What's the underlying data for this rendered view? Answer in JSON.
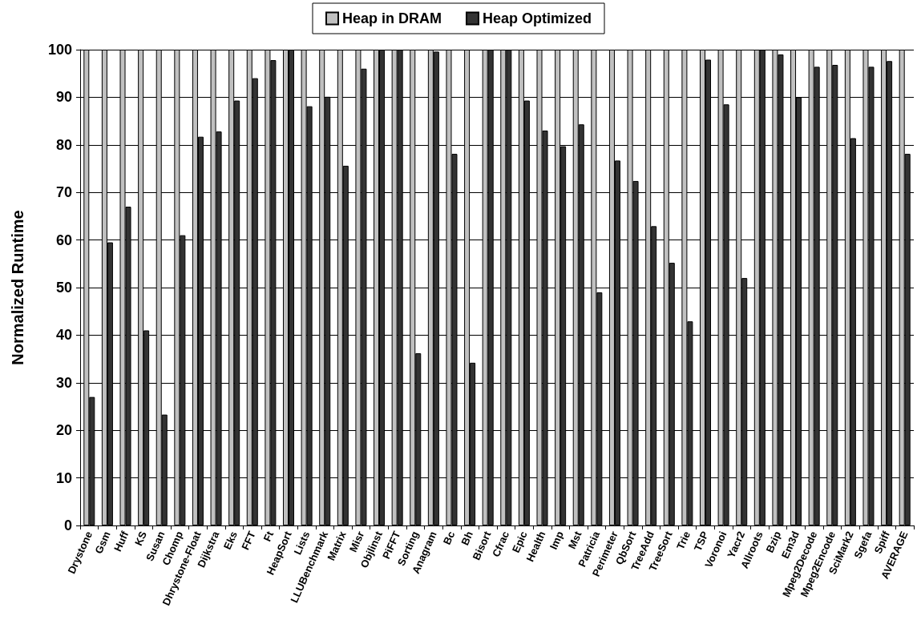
{
  "chart_data": {
    "type": "bar",
    "ylabel": "Normalized Runtime",
    "categories": [
      "Drystone",
      "Gsm",
      "Huff",
      "KS",
      "Susan",
      "Chomp",
      "Dhrystone-Float",
      "Dijkstra",
      "Eks",
      "FFT",
      "Ft",
      "HeapSort",
      "Lists",
      "LLUBenchmark",
      "Matrix",
      "Misr",
      "Objlinst",
      "PiFFT",
      "Sorting",
      "Anagram",
      "Bc",
      "Bh",
      "Bisort",
      "Cfrac",
      "Epic",
      "Health",
      "Imp",
      "Mst",
      "Patricia",
      "Perimeter",
      "QbSort",
      "TreeAdd",
      "TreeSort",
      "Trie",
      "TSP",
      "Voronoi",
      "Yacr2",
      "Allroots",
      "Bzip",
      "Em3d",
      "Mpeg2Decode",
      "Mpeg2Encode",
      "SciMark2",
      "Sgefa",
      "Spiff",
      "AVERAGE"
    ],
    "series": [
      {
        "name": "Heap in DRAM",
        "color": "#c0c0c0",
        "values": [
          100,
          100,
          100,
          100,
          100,
          100,
          100,
          100,
          100,
          100,
          100,
          100,
          100,
          100,
          100,
          100,
          100,
          100,
          100,
          100,
          100,
          100,
          100,
          100,
          100,
          100,
          100,
          100,
          100,
          100,
          100,
          100,
          100,
          100,
          100,
          100,
          100,
          100,
          100,
          100,
          100,
          100,
          100,
          100,
          100,
          100
        ]
      },
      {
        "name": "Heap Optimized",
        "color": "#333333",
        "values": [
          27,
          59.5,
          67,
          41,
          23.3,
          61,
          81.7,
          82.8,
          89.3,
          94,
          97.8,
          100,
          88.1,
          90.1,
          75.6,
          96,
          100,
          100,
          36.2,
          99.6,
          78.1,
          34.2,
          100,
          100,
          89.3,
          83,
          79.7,
          84.3,
          49,
          76.7,
          72.4,
          62.9,
          55.2,
          42.9,
          97.9,
          88.5,
          52,
          100,
          99,
          90,
          96.4,
          96.8,
          81.4,
          96.4,
          97.6,
          78.1
        ]
      }
    ],
    "ylim": [
      0,
      100
    ],
    "yticks": [
      0,
      10,
      20,
      30,
      40,
      50,
      60,
      70,
      80,
      90,
      100
    ],
    "grid": "y",
    "legend": "top"
  }
}
